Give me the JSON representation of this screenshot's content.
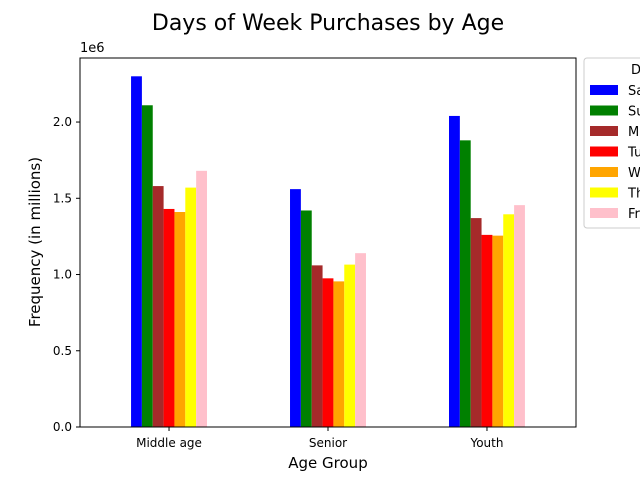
{
  "chart_data": {
    "type": "bar",
    "title": "Days of Week Purchases by Age",
    "xlabel": "Age Group",
    "ylabel": "Frequency (in millions)",
    "offset_label": "1e6",
    "ylim": [
      0,
      2420000
    ],
    "y_ticks": [
      0,
      500000,
      1000000,
      1500000,
      2000000
    ],
    "y_tick_labels": [
      "0.0",
      "0.5",
      "1.0",
      "1.5",
      "2.0"
    ],
    "grid": false,
    "legend": {
      "title": "D",
      "placement": "right-outside-top"
    },
    "categories": [
      "Middle age",
      "Senior",
      "Youth"
    ],
    "series": [
      {
        "name": "Sa",
        "color": "#0000ff",
        "values": [
          2300000,
          1560000,
          2040000
        ]
      },
      {
        "name": "Su",
        "color": "#008000",
        "values": [
          2110000,
          1420000,
          1880000
        ]
      },
      {
        "name": "M",
        "color": "#a52a2a",
        "values": [
          1580000,
          1060000,
          1370000
        ]
      },
      {
        "name": "Tu",
        "color": "#ff0000",
        "values": [
          1430000,
          975000,
          1260000
        ]
      },
      {
        "name": "W",
        "color": "#ffa500",
        "values": [
          1410000,
          955000,
          1255000
        ]
      },
      {
        "name": "Th",
        "color": "#ffff00",
        "values": [
          1570000,
          1065000,
          1395000
        ]
      },
      {
        "name": "Fr",
        "color": "#ffc0cb",
        "values": [
          1680000,
          1140000,
          1455000
        ]
      }
    ]
  }
}
